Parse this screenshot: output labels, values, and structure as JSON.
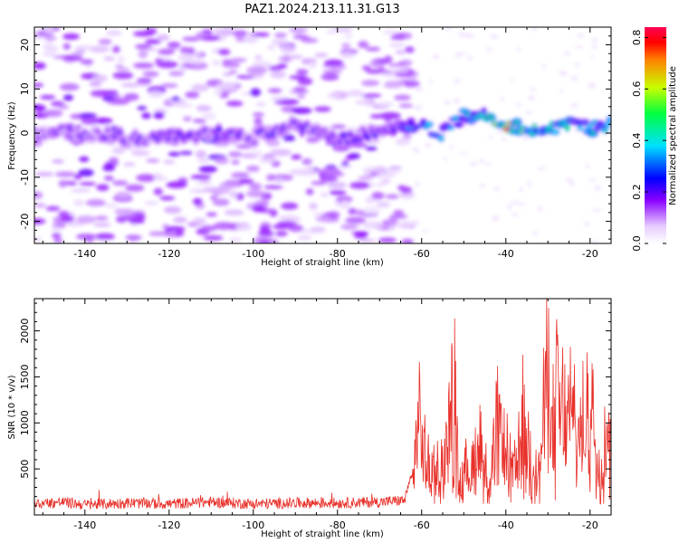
{
  "figure": {
    "title": "PAZ1.2024.213.11.31.G13"
  },
  "chart_data": [
    {
      "type": "heatmap",
      "title": "PAZ1.2024.213.11.31.G13",
      "xlabel": "Height of straight line (km)",
      "ylabel": "Frequency (Hz)",
      "xlim": [
        -152,
        -15
      ],
      "ylim": [
        -25,
        24
      ],
      "xticks": [
        -140,
        -120,
        -100,
        -80,
        -60,
        -40,
        -20
      ],
      "yticks": [
        -20,
        -10,
        0,
        10,
        20
      ],
      "colorbar": {
        "label": "Normalized spectral amplitude",
        "range": [
          0.0,
          0.84
        ],
        "ticks": [
          0.0,
          0.2,
          0.4,
          0.6,
          0.8
        ],
        "colormap": "gist_rainbow (violet-blue-cyan-green-yellow-red)"
      },
      "ridge": {
        "description": "dominant signal near 0-3 Hz, strongest between -45 and -18 km",
        "x": [
          -150,
          -140,
          -130,
          -120,
          -110,
          -100,
          -90,
          -80,
          -70,
          -62,
          -55,
          -50,
          -45,
          -40,
          -35,
          -30,
          -25,
          -20,
          -16
        ],
        "frequency_hz": [
          0,
          0,
          -1,
          -1,
          0,
          -1,
          2,
          -2,
          1,
          2,
          0,
          4,
          4,
          2,
          1,
          1,
          2,
          1,
          2
        ],
        "amplitude": [
          0.22,
          0.2,
          0.2,
          0.22,
          0.22,
          0.22,
          0.24,
          0.22,
          0.24,
          0.36,
          0.38,
          0.4,
          0.46,
          0.8,
          0.55,
          0.45,
          0.5,
          0.45,
          0.5
        ]
      }
    },
    {
      "type": "line",
      "xlabel": "Height of straight line (km)",
      "ylabel": "SNR (10 * v/v)",
      "xlim": [
        -152,
        -15
      ],
      "ylim": [
        0,
        2350
      ],
      "xticks": [
        -140,
        -120,
        -100,
        -80,
        -60,
        -40,
        -20
      ],
      "yticks": [
        500,
        1000,
        1500,
        2000
      ],
      "color": "#e8302a",
      "series": [
        {
          "x": [
            -152,
            -145,
            -140,
            -130,
            -120,
            -110,
            -100,
            -90,
            -80,
            -70,
            -64,
            -62,
            -61,
            -60,
            -58,
            -55,
            -52,
            -51,
            -50,
            -48,
            -46,
            -44,
            -42,
            -40,
            -38,
            -36,
            -34,
            -32,
            -30,
            -29,
            -28,
            -26,
            -24,
            -22,
            -20,
            -18,
            -16,
            -15
          ],
          "y": [
            120,
            140,
            110,
            130,
            120,
            140,
            120,
            130,
            130,
            140,
            160,
            500,
            1300,
            1150,
            600,
            700,
            1850,
            400,
            600,
            700,
            1200,
            300,
            1300,
            900,
            600,
            1300,
            800,
            600,
            2300,
            1100,
            1800,
            1400,
            1500,
            1100,
            1800,
            600,
            1400,
            1050
          ],
          "noise_floor": 120
        }
      ]
    }
  ]
}
